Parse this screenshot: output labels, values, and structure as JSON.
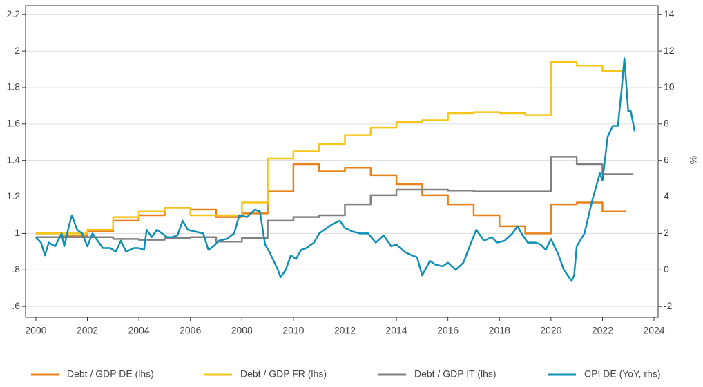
{
  "chart_data": {
    "type": "line",
    "xlim": [
      1999.6,
      2024.16
    ],
    "xticks": [
      2000,
      2002,
      2004,
      2006,
      2008,
      2010,
      2012,
      2014,
      2016,
      2018,
      2020,
      2022,
      2024
    ],
    "ylim": [
      0.54,
      2.25
    ],
    "yticks": [
      {
        "value": 0.6,
        "label": ".6"
      },
      {
        "value": 0.8,
        "label": ".8"
      },
      1,
      1.2,
      1.4,
      1.6,
      1.8,
      2,
      2.2
    ],
    "y2lim": [
      -2.6,
      14.5
    ],
    "y2ticks": [
      -2,
      0,
      2,
      4,
      6,
      8,
      10,
      12,
      14
    ],
    "y2label": "%",
    "grid": true,
    "legend": "bottom",
    "series": [
      {
        "name": "Debt / GDP DE (lhs)",
        "color": "#e8811a",
        "drawstyle": "steps-post",
        "x": [
          2000,
          2001,
          2002,
          2003,
          2004,
          2005,
          2006,
          2007,
          2008,
          2009,
          2010,
          2011,
          2012,
          2013,
          2014,
          2015,
          2016,
          2017,
          2018,
          2019,
          2020,
          2021,
          2022,
          2022.9
        ],
        "values": [
          1.0,
          0.985,
          1.01,
          1.07,
          1.1,
          1.14,
          1.13,
          1.09,
          1.11,
          1.23,
          1.38,
          1.34,
          1.36,
          1.32,
          1.27,
          1.21,
          1.16,
          1.1,
          1.04,
          1.0,
          1.16,
          1.17,
          1.12,
          1.12
        ]
      },
      {
        "name": "Debt / GDP FR (lhs)",
        "color": "#f5c518",
        "drawstyle": "steps-post",
        "x": [
          2000,
          2001,
          2002,
          2003,
          2004,
          2005,
          2006,
          2007,
          2008,
          2009,
          2010,
          2011,
          2012,
          2013,
          2014,
          2015,
          2016,
          2017,
          2018,
          2019,
          2020,
          2021,
          2022,
          2022.9
        ],
        "values": [
          1.0,
          1.0,
          1.02,
          1.09,
          1.12,
          1.14,
          1.1,
          1.1,
          1.17,
          1.41,
          1.45,
          1.49,
          1.54,
          1.58,
          1.61,
          1.62,
          1.66,
          1.665,
          1.66,
          1.65,
          1.94,
          1.92,
          1.89,
          1.89
        ]
      },
      {
        "name": "Debt / GDP IT (lhs)",
        "color": "#808080",
        "drawstyle": "steps-post",
        "x": [
          2000,
          2001,
          2002,
          2003,
          2004,
          2005,
          2006,
          2007,
          2008,
          2009,
          2010,
          2011,
          2012,
          2013,
          2014,
          2015,
          2016,
          2017,
          2018,
          2019,
          2020,
          2021,
          2022,
          2023.2
        ],
        "values": [
          0.98,
          0.98,
          0.98,
          0.97,
          0.965,
          0.975,
          0.98,
          0.955,
          0.975,
          1.07,
          1.09,
          1.1,
          1.16,
          1.21,
          1.24,
          1.24,
          1.235,
          1.23,
          1.23,
          1.23,
          1.42,
          1.38,
          1.325,
          1.325
        ]
      },
      {
        "name": "CPI DE (YoY, rhs)",
        "color": "#0f8fb5",
        "axis": "y2",
        "x": [
          2000.0,
          2000.2,
          2000.35,
          2000.5,
          2000.75,
          2001.0,
          2001.1,
          2001.3,
          2001.4,
          2001.6,
          2001.8,
          2002.0,
          2002.2,
          2002.4,
          2002.6,
          2002.9,
          2003.1,
          2003.3,
          2003.5,
          2003.8,
          2004.0,
          2004.2,
          2004.3,
          2004.5,
          2004.7,
          2004.9,
          2005.1,
          2005.3,
          2005.5,
          2005.7,
          2005.9,
          2006.2,
          2006.5,
          2006.7,
          2006.9,
          2007.1,
          2007.4,
          2007.7,
          2007.9,
          2008.2,
          2008.5,
          2008.7,
          2008.9,
          2009.1,
          2009.4,
          2009.5,
          2009.7,
          2009.9,
          2010.1,
          2010.3,
          2010.5,
          2010.8,
          2011.0,
          2011.3,
          2011.5,
          2011.8,
          2012.0,
          2012.3,
          2012.6,
          2012.9,
          2013.2,
          2013.5,
          2013.8,
          2014.0,
          2014.3,
          2014.6,
          2014.8,
          2015.0,
          2015.3,
          2015.5,
          2015.8,
          2016.0,
          2016.3,
          2016.6,
          2016.9,
          2017.1,
          2017.4,
          2017.7,
          2017.9,
          2018.2,
          2018.5,
          2018.7,
          2018.9,
          2019.1,
          2019.4,
          2019.6,
          2019.8,
          2020.0,
          2020.3,
          2020.5,
          2020.8,
          2020.9,
          2021.0,
          2021.3,
          2021.6,
          2021.9,
          2022.0,
          2022.2,
          2022.4,
          2022.6,
          2022.75,
          2022.85,
          2023.0,
          2023.1,
          2023.25
        ],
        "values": [
          1.8,
          1.5,
          0.8,
          1.5,
          1.3,
          2.0,
          1.3,
          2.5,
          3.0,
          2.2,
          2.0,
          1.3,
          2.0,
          1.6,
          1.2,
          1.2,
          1.0,
          1.6,
          1.0,
          1.2,
          1.2,
          1.1,
          2.2,
          1.8,
          2.2,
          2.0,
          1.8,
          1.8,
          1.9,
          2.7,
          2.2,
          2.1,
          2.0,
          1.1,
          1.3,
          1.6,
          1.7,
          2.0,
          3.0,
          2.9,
          3.3,
          3.2,
          1.4,
          0.9,
          0.0,
          -0.4,
          0.0,
          0.8,
          0.6,
          1.1,
          1.2,
          1.5,
          2.0,
          2.3,
          2.5,
          2.7,
          2.3,
          2.1,
          2.0,
          2.0,
          1.5,
          1.9,
          1.3,
          1.4,
          1.0,
          0.8,
          0.7,
          -0.3,
          0.5,
          0.3,
          0.2,
          0.4,
          0.0,
          0.4,
          1.5,
          2.2,
          1.6,
          1.8,
          1.5,
          1.6,
          2.0,
          2.4,
          1.9,
          1.5,
          1.5,
          1.4,
          1.1,
          1.7,
          0.8,
          0.0,
          -0.6,
          -0.3,
          1.3,
          2.0,
          3.8,
          5.3,
          4.9,
          7.3,
          7.9,
          7.9,
          10.0,
          11.6,
          8.7,
          8.7,
          7.6
        ]
      }
    ]
  }
}
